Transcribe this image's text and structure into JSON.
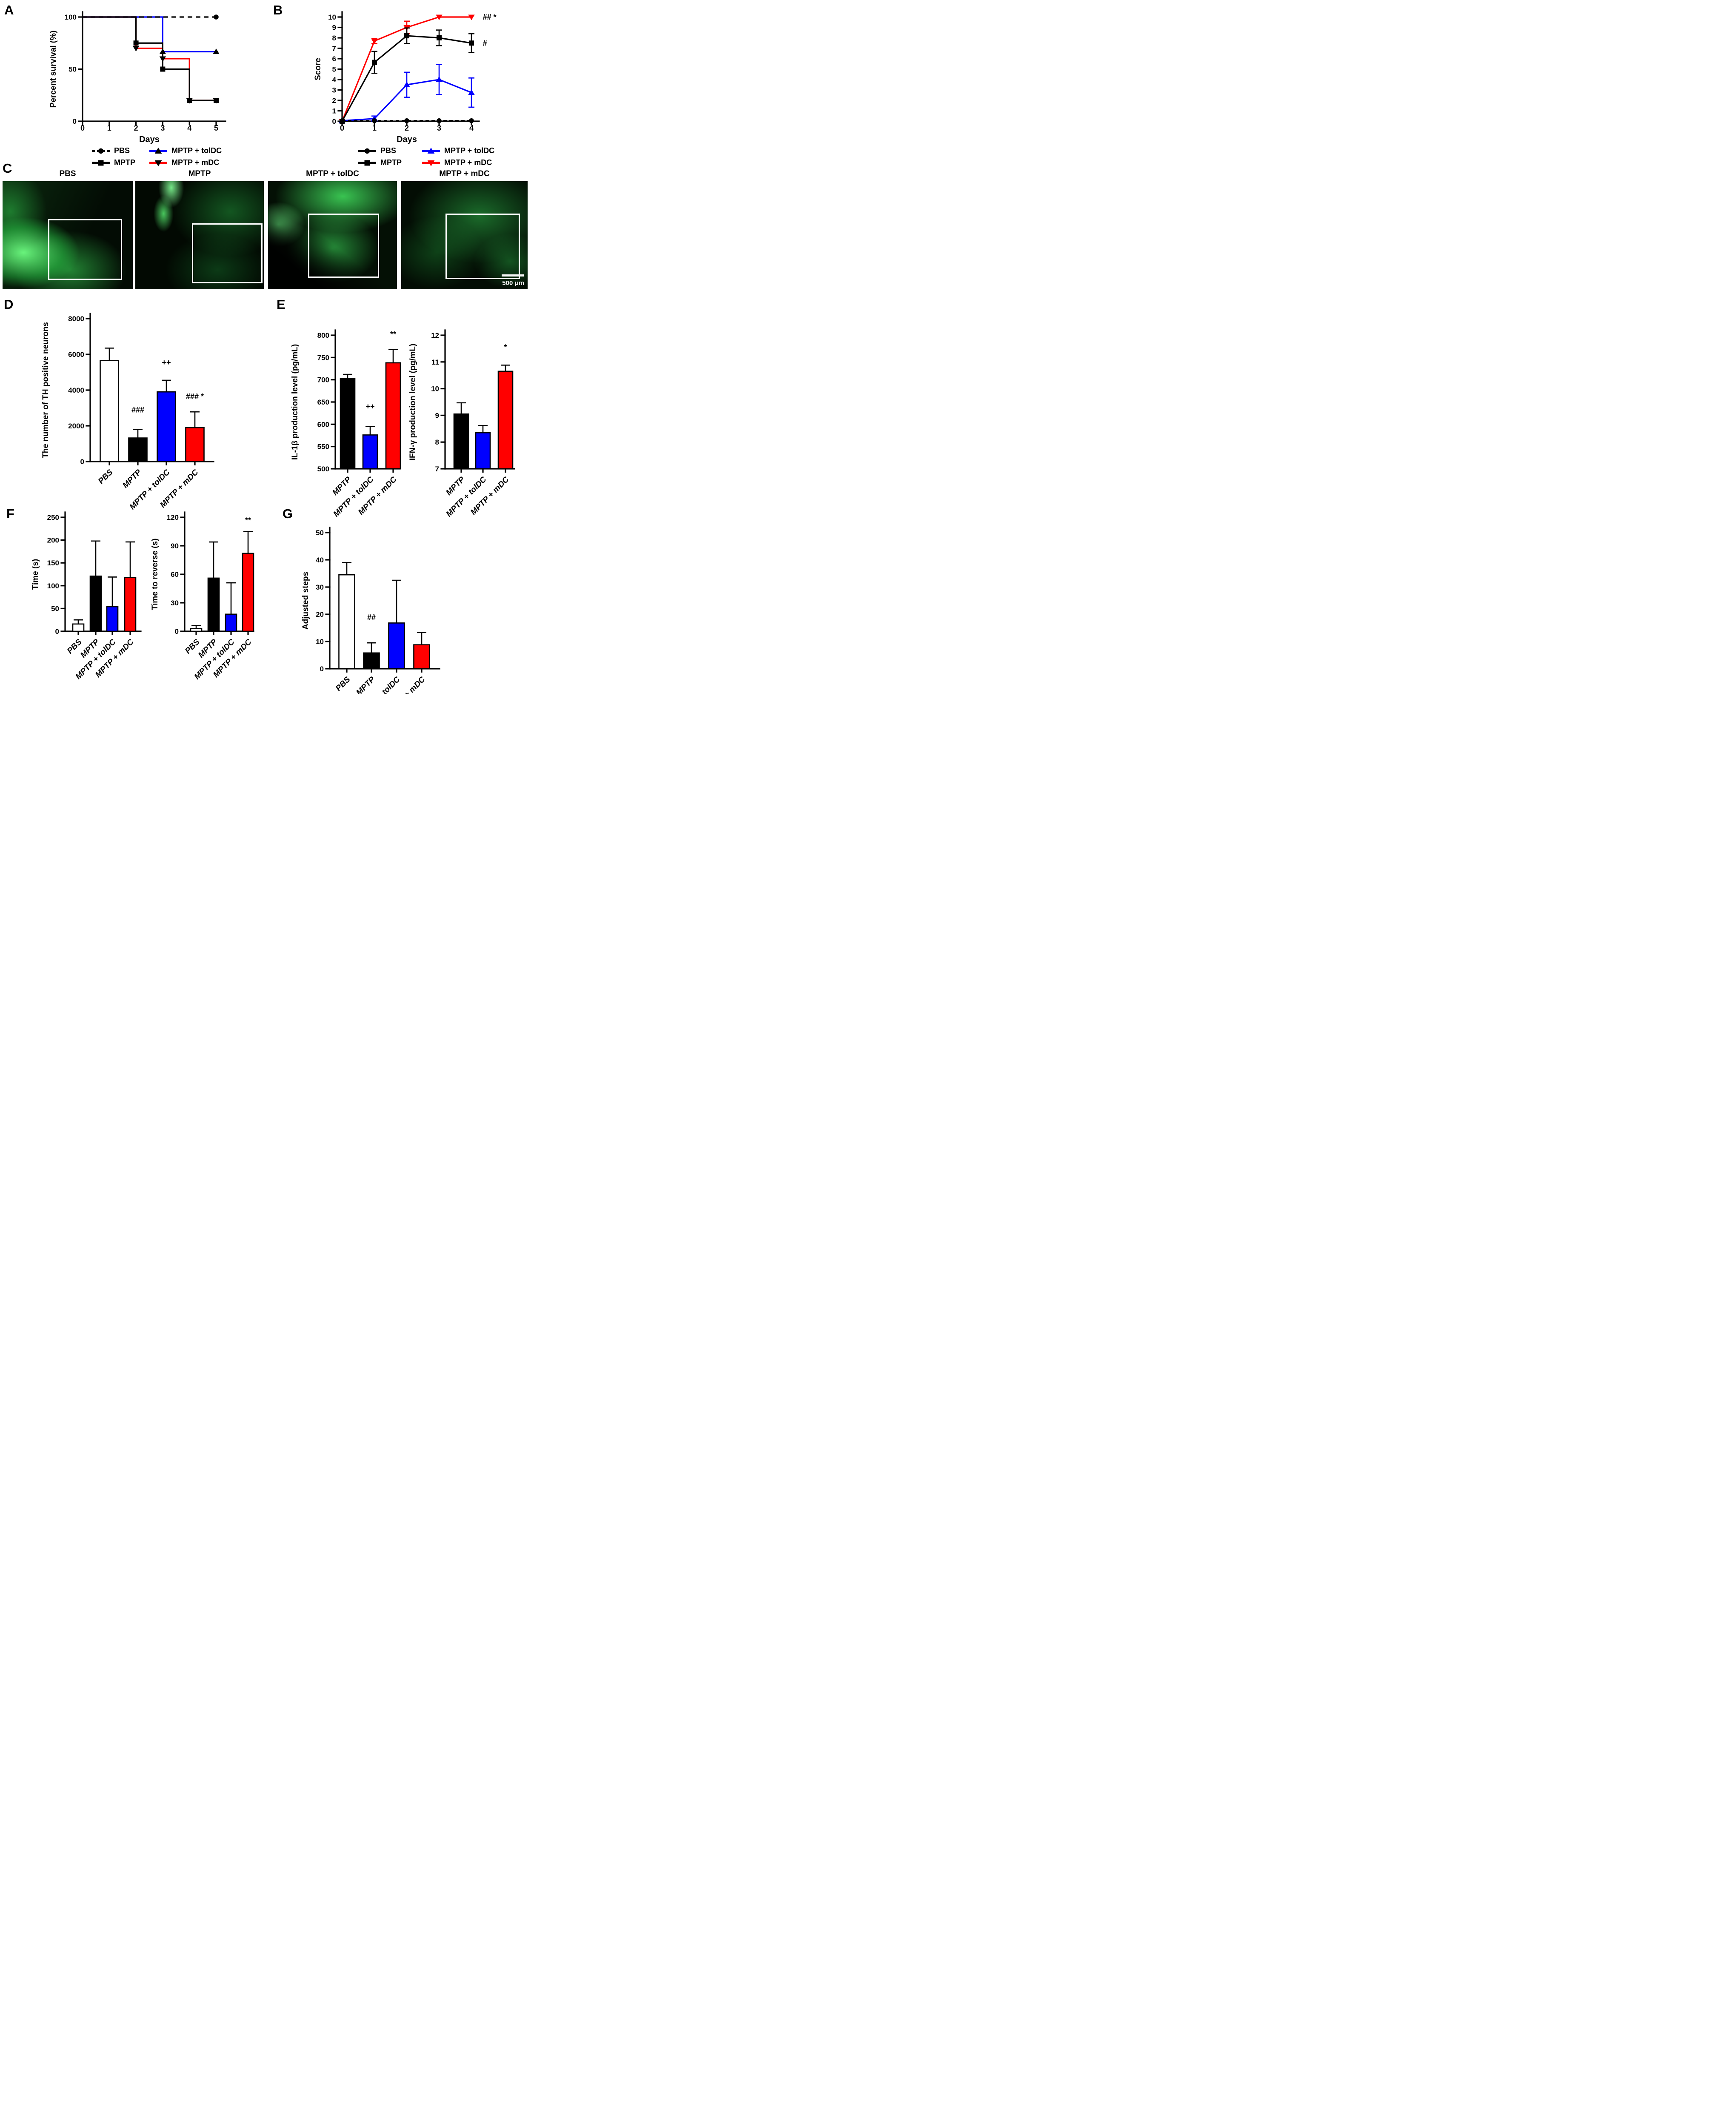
{
  "panels": {
    "a": "A",
    "b": "B",
    "c": "C",
    "d": "D",
    "e": "E",
    "f": "F",
    "g": "G"
  },
  "colors": {
    "pbs_fill": "#ffffff",
    "mptp_fill": "#000000",
    "toldc_fill": "#0000ff",
    "mdc_fill": "#ff0000",
    "axis": "#000000",
    "fluorescence_green": "#2ce05a"
  },
  "legends": {
    "a": {
      "items": [
        {
          "label": "PBS",
          "line_color": "#000000",
          "dash": true,
          "marker": "circle",
          "marker_color": "#000000"
        },
        {
          "label": "MPTP + tolDC",
          "line_color": "#0000ff",
          "dash": false,
          "marker": "triangle-up",
          "marker_color": "#000000"
        },
        {
          "label": "MPTP",
          "line_color": "#000000",
          "dash": false,
          "marker": "square",
          "marker_color": "#000000"
        },
        {
          "label": "MPTP + mDC",
          "line_color": "#ff0000",
          "dash": false,
          "marker": "triangle-down",
          "marker_color": "#000000"
        }
      ]
    },
    "b": {
      "items": [
        {
          "label": "PBS",
          "line_color": "#000000",
          "dash": false,
          "marker": "circle",
          "marker_color": "#000000"
        },
        {
          "label": "MPTP + tolDC",
          "line_color": "#0000ff",
          "dash": false,
          "marker": "triangle-up",
          "marker_color": "#0000ff"
        },
        {
          "label": "MPTP",
          "line_color": "#000000",
          "dash": false,
          "marker": "square",
          "marker_color": "#000000"
        },
        {
          "label": "MPTP + mDC",
          "line_color": "#ff0000",
          "dash": false,
          "marker": "triangle-down",
          "marker_color": "#ff0000"
        }
      ]
    }
  },
  "micrographs": {
    "panel": "C",
    "images": [
      {
        "label": "PBS"
      },
      {
        "label": "MPTP"
      },
      {
        "label": "MPTP + tolDC"
      },
      {
        "label": "MPTP + mDC"
      }
    ],
    "scale_bar": "500 μm"
  },
  "chart_data": [
    {
      "id": "A",
      "panel": "A",
      "type": "line",
      "title": "",
      "xlabel": "Days",
      "ylabel": "Percent survival (%)",
      "xlim": [
        0,
        5
      ],
      "ylim": [
        0,
        100
      ],
      "xticks": [
        0,
        1,
        2,
        3,
        4,
        5
      ],
      "yticks": [
        0,
        50,
        100
      ],
      "grid": false,
      "series": [
        {
          "name": "PBS",
          "color": "#000000",
          "dash": "11,8",
          "marker": "circle",
          "marker_color": "#000000",
          "points": [
            [
              0,
              100
            ],
            [
              5,
              100
            ]
          ],
          "markers": [
            [
              5,
              100
            ]
          ],
          "errors": []
        },
        {
          "name": "MPTP",
          "color": "#000000",
          "dash": null,
          "marker": "square",
          "marker_color": "#000000",
          "points": [
            [
              0,
              100
            ],
            [
              2,
              100
            ],
            [
              2,
              75
            ],
            [
              3,
              75
            ],
            [
              3,
              50
            ],
            [
              4,
              50
            ],
            [
              4,
              20
            ],
            [
              5,
              20
            ]
          ],
          "markers": [
            [
              2,
              75
            ],
            [
              3,
              50
            ],
            [
              4,
              20
            ],
            [
              5,
              20
            ]
          ],
          "errors": []
        },
        {
          "name": "MPTP + tolDC",
          "color": "#0000ff",
          "dash": null,
          "marker": "triangle-up",
          "marker_color": "#000000",
          "points": [
            [
              0,
              100
            ],
            [
              3,
              100
            ],
            [
              3,
              66.7
            ],
            [
              5,
              66.7
            ]
          ],
          "markers": [
            [
              3,
              66.7
            ],
            [
              5,
              66.7
            ]
          ],
          "errors": []
        },
        {
          "name": "MPTP + mDC",
          "color": "#ff0000",
          "dash": null,
          "marker": "triangle-down",
          "marker_color": "#000000",
          "points": [
            [
              0,
              100
            ],
            [
              2,
              100
            ],
            [
              2,
              70
            ],
            [
              3,
              70
            ],
            [
              3,
              60
            ],
            [
              4,
              60
            ],
            [
              4,
              20
            ],
            [
              5,
              20
            ]
          ],
          "markers": [
            [
              2,
              70
            ],
            [
              3,
              60
            ],
            [
              4,
              20
            ],
            [
              5,
              20
            ]
          ],
          "errors": []
        }
      ],
      "annotations": []
    },
    {
      "id": "B",
      "panel": "B",
      "type": "line",
      "title": "",
      "xlabel": "Days",
      "ylabel": "Score",
      "xlim": [
        0,
        4
      ],
      "ylim": [
        0,
        10
      ],
      "xticks": [
        0,
        1,
        2,
        3,
        4
      ],
      "yticks": [
        0,
        1,
        2,
        3,
        4,
        5,
        6,
        7,
        8,
        9,
        10
      ],
      "grid": false,
      "series": [
        {
          "name": "PBS",
          "color": "#000000",
          "dash": "8,6",
          "marker": "circle",
          "marker_color": "#000000",
          "points": [
            [
              0,
              0.05
            ],
            [
              1,
              0.05
            ],
            [
              2,
              0.05
            ],
            [
              3,
              0.05
            ],
            [
              4,
              0.05
            ]
          ],
          "markers": [
            [
              0,
              0.05
            ],
            [
              1,
              0.05
            ],
            [
              2,
              0.05
            ],
            [
              3,
              0.05
            ],
            [
              4,
              0.05
            ]
          ],
          "errors": []
        },
        {
          "name": "MPTP",
          "color": "#000000",
          "dash": null,
          "marker": "square",
          "marker_color": "#000000",
          "points": [
            [
              0,
              0
            ],
            [
              1,
              5.65
            ],
            [
              2,
              8.2
            ],
            [
              3,
              8.0
            ],
            [
              4,
              7.5
            ]
          ],
          "markers": [
            [
              0,
              0
            ],
            [
              1,
              5.65
            ],
            [
              2,
              8.2
            ],
            [
              3,
              8.0
            ],
            [
              4,
              7.5
            ]
          ],
          "errors": [
            [
              1,
              5.65,
              1.05
            ],
            [
              2,
              8.2,
              0.75
            ],
            [
              3,
              8.0,
              0.75
            ],
            [
              4,
              7.5,
              0.9
            ]
          ]
        },
        {
          "name": "MPTP + tolDC",
          "color": "#0000ff",
          "dash": null,
          "marker": "triangle-up",
          "marker_color": "#0000ff",
          "points": [
            [
              0,
              0.05
            ],
            [
              1,
              0.25
            ],
            [
              2,
              3.5
            ],
            [
              3,
              4.0
            ],
            [
              4,
              2.75
            ]
          ],
          "markers": [
            [
              0,
              0.05
            ],
            [
              1,
              0.25
            ],
            [
              2,
              3.5
            ],
            [
              3,
              4.0
            ],
            [
              4,
              2.75
            ]
          ],
          "errors": [
            [
              1,
              0.25,
              0.25
            ],
            [
              2,
              3.5,
              1.2
            ],
            [
              3,
              4.0,
              1.45
            ],
            [
              4,
              2.75,
              1.4
            ]
          ]
        },
        {
          "name": "MPTP + mDC",
          "color": "#ff0000",
          "dash": null,
          "marker": "triangle-down",
          "marker_color": "#ff0000",
          "points": [
            [
              0,
              0
            ],
            [
              1,
              7.7
            ],
            [
              2,
              9.0
            ],
            [
              3,
              10
            ],
            [
              4,
              10
            ]
          ],
          "markers": [
            [
              0,
              0
            ],
            [
              1,
              7.7
            ],
            [
              2,
              9.0
            ],
            [
              3,
              10
            ],
            [
              4,
              10
            ]
          ],
          "errors": [
            [
              1,
              7.7,
              0.25
            ],
            [
              2,
              9.0,
              0.6
            ]
          ]
        }
      ],
      "annotations": [
        {
          "text": "## *",
          "x": 4.35,
          "y": 10
        },
        {
          "text": "#",
          "x": 4.35,
          "y": 7.5
        }
      ]
    },
    {
      "id": "D",
      "panel": "D",
      "type": "bar",
      "title": "",
      "xlabel": "",
      "ylabel": "The number of TH positive neurons",
      "ylim": [
        0,
        8000
      ],
      "yticks": [
        0,
        2000,
        4000,
        6000,
        8000
      ],
      "grid": false,
      "categories": [
        "PBS",
        "MPTP",
        "MPTP + tolDC",
        "MPTP + mDC"
      ],
      "values": [
        5650,
        1320,
        3900,
        1900
      ],
      "errors": [
        700,
        480,
        650,
        880
      ],
      "colors": [
        "#ffffff",
        "#000000",
        "#0000ff",
        "#ff0000"
      ],
      "annotations": [
        null,
        {
          "text": "###",
          "y": 2750
        },
        {
          "text": "++",
          "y": 5400
        },
        {
          "text": "### *",
          "y": 3500
        }
      ]
    },
    {
      "id": "E1",
      "panel": "E",
      "type": "bar",
      "title": "",
      "xlabel": "",
      "ylabel": "IL-1β production level (pg/mL)",
      "ylim": [
        500,
        800
      ],
      "yticks": [
        500,
        550,
        600,
        650,
        700,
        750,
        800
      ],
      "grid": false,
      "categories": [
        "MPTP",
        "MPTP + tolDC",
        "MPTP + mDC"
      ],
      "values": [
        703,
        576,
        738
      ],
      "errors": [
        9,
        19,
        30
      ],
      "colors": [
        "#000000",
        "#0000ff",
        "#ff0000"
      ],
      "annotations": [
        null,
        {
          "text": "++",
          "y": 634
        },
        {
          "text": "**",
          "y": 796
        }
      ]
    },
    {
      "id": "E2",
      "panel": "E",
      "type": "bar",
      "title": "",
      "xlabel": "",
      "ylabel": "IFN-γ production level (pg/mL)",
      "ylim": [
        7,
        12
      ],
      "yticks": [
        7,
        8,
        9,
        10,
        11,
        12
      ],
      "grid": false,
      "categories": [
        "MPTP",
        "MPTP + tolDC",
        "MPTP + mDC"
      ],
      "values": [
        9.05,
        8.35,
        10.65
      ],
      "errors": [
        0.42,
        0.27,
        0.23
      ],
      "colors": [
        "#000000",
        "#0000ff",
        "#ff0000"
      ],
      "annotations": [
        null,
        null,
        {
          "text": "*",
          "y": 11.45
        }
      ]
    },
    {
      "id": "F1",
      "panel": "F",
      "type": "bar",
      "title": "",
      "xlabel": "",
      "ylabel": "Time (s)",
      "ylim": [
        0,
        250
      ],
      "yticks": [
        0,
        50,
        100,
        150,
        200,
        250
      ],
      "grid": false,
      "categories": [
        "PBS",
        "MPTP",
        "MPTP + tolDC",
        "MPTP + mDC"
      ],
      "values": [
        16,
        121,
        54,
        118
      ],
      "errors": [
        9,
        77,
        65,
        78
      ],
      "colors": [
        "#ffffff",
        "#000000",
        "#0000ff",
        "#ff0000"
      ],
      "annotations": [
        null,
        null,
        null,
        null
      ]
    },
    {
      "id": "F2",
      "panel": "F",
      "type": "bar",
      "title": "",
      "xlabel": "",
      "ylabel": "Time to reverse (s)",
      "ylim": [
        0,
        120
      ],
      "yticks": [
        0,
        30,
        60,
        90,
        120
      ],
      "grid": false,
      "categories": [
        "PBS",
        "MPTP",
        "MPTP + tolDC",
        "MPTP + mDC"
      ],
      "values": [
        3,
        56,
        18,
        82
      ],
      "errors": [
        3,
        38,
        33,
        23
      ],
      "colors": [
        "#ffffff",
        "#000000",
        "#0000ff",
        "#ff0000"
      ],
      "annotations": [
        null,
        null,
        null,
        {
          "text": "**",
          "y": 114
        }
      ]
    },
    {
      "id": "G",
      "panel": "G",
      "type": "bar",
      "title": "",
      "xlabel": "",
      "ylabel": "Adjusted steps",
      "ylim": [
        0,
        50
      ],
      "yticks": [
        0,
        10,
        20,
        30,
        40,
        50
      ],
      "grid": false,
      "categories": [
        "PBS",
        "MPTP",
        "MPTP + tolDC",
        "MPTP + mDC"
      ],
      "values": [
        34.5,
        5.8,
        16.8,
        8.8
      ],
      "errors": [
        4.5,
        3.7,
        15.7,
        4.5
      ],
      "colors": [
        "#ffffff",
        "#000000",
        "#0000ff",
        "#ff0000"
      ],
      "annotations": [
        null,
        {
          "text": "##",
          "y": 18
        },
        null,
        null
      ]
    }
  ]
}
